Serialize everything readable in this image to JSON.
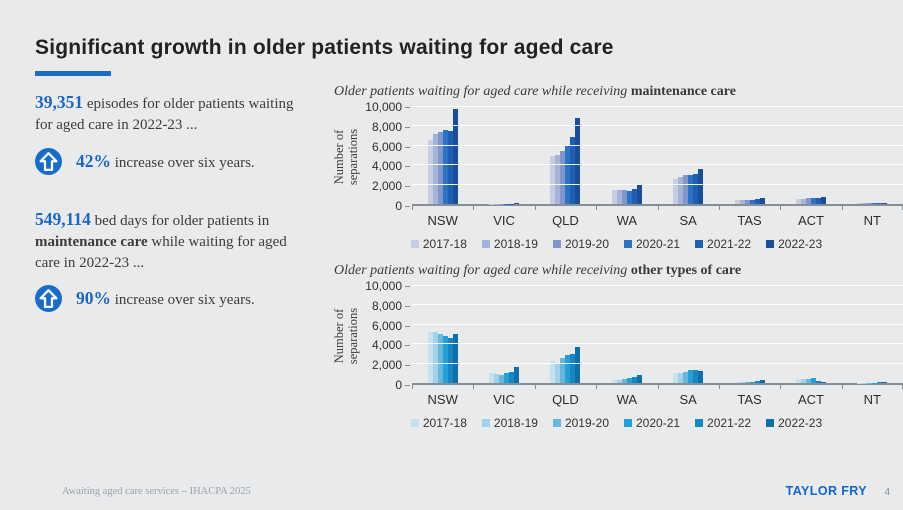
{
  "slide": {
    "title": "Significant growth in older patients waiting for aged care"
  },
  "stats": [
    {
      "number": "39,351",
      "rest": " episodes for older patients waiting for aged care in 2022-23 ...",
      "pct": "42%",
      "pct_rest": " increase over six years."
    },
    {
      "number": "549,114",
      "mid": " bed days for older patients in ",
      "bold": "maintenance care",
      "rest": " while waiting for aged care in 2022-23 ...",
      "pct": "90%",
      "pct_rest": " increase over six years."
    }
  ],
  "footer": {
    "left": "Awaiting aged care services – IHACPA 2025",
    "brand": "TAYLOR FRY",
    "page": "4"
  },
  "colors": {
    "accent": "#1b6cc7",
    "stat_number": "#1b67c3",
    "brand_blue": "#1566c9"
  },
  "chart_data": [
    {
      "type": "bar",
      "title_italic": "Older patients waiting for aged care while receiving ",
      "title_bold": "maintenance care",
      "ylabel_line1": "Number of",
      "ylabel_line2": "separations",
      "ylim": [
        0,
        10000
      ],
      "yticks": [
        "0",
        "2,000",
        "4,000",
        "6,000",
        "8,000",
        "10,000"
      ],
      "grid": true,
      "legend_position": "bottom",
      "categories": [
        "NSW",
        "VIC",
        "QLD",
        "WA",
        "SA",
        "TAS",
        "ACT",
        "NT"
      ],
      "series": [
        {
          "name": "2017-18",
          "color": "#c7cee3",
          "values": [
            6600,
            30,
            5000,
            1400,
            2600,
            400,
            550,
            80
          ]
        },
        {
          "name": "2018-19",
          "color": "#a5b3d8",
          "values": [
            7200,
            30,
            5100,
            1450,
            2800,
            400,
            560,
            80
          ]
        },
        {
          "name": "2019-20",
          "color": "#8097cc",
          "values": [
            7400,
            30,
            5500,
            1400,
            3000,
            420,
            620,
            90
          ]
        },
        {
          "name": "2020-21",
          "color": "#2e72c4",
          "values": [
            7600,
            30,
            6000,
            1300,
            3000,
            450,
            640,
            90
          ]
        },
        {
          "name": "2021-22",
          "color": "#1e5fb3",
          "values": [
            7500,
            40,
            6900,
            1500,
            3100,
            550,
            580,
            110
          ]
        },
        {
          "name": "2022-23",
          "color": "#1a4f97",
          "values": [
            9800,
            100,
            8900,
            2000,
            3600,
            650,
            750,
            130
          ]
        }
      ]
    },
    {
      "type": "bar",
      "title_italic": "Older patients waiting for aged care while receiving ",
      "title_bold": "other types of care",
      "ylabel_line1": "Number of",
      "ylabel_line2": "separations",
      "ylim": [
        0,
        10000
      ],
      "yticks": [
        "0",
        "2,000",
        "4,000",
        "6,000",
        "8,000",
        "10,000"
      ],
      "grid": true,
      "legend_position": "bottom",
      "categories": [
        "NSW",
        "VIC",
        "QLD",
        "WA",
        "SA",
        "TAS",
        "ACT",
        "NT"
      ],
      "series": [
        {
          "name": "2017-18",
          "color": "#c6e1ef",
          "values": [
            5300,
            1000,
            2300,
            300,
            1000,
            100,
            400,
            40
          ]
        },
        {
          "name": "2018-19",
          "color": "#a3d2e8",
          "values": [
            5300,
            950,
            2000,
            320,
            1050,
            150,
            420,
            40
          ]
        },
        {
          "name": "2019-20",
          "color": "#68b7dd",
          "values": [
            5100,
            800,
            2600,
            400,
            1150,
            120,
            450,
            50
          ]
        },
        {
          "name": "2020-21",
          "color": "#259fd6",
          "values": [
            4800,
            1000,
            2900,
            500,
            1300,
            130,
            500,
            50
          ]
        },
        {
          "name": "2021-22",
          "color": "#1786c2",
          "values": [
            4600,
            1150,
            3000,
            650,
            1350,
            220,
            180,
            60
          ]
        },
        {
          "name": "2022-23",
          "color": "#0f6fa8",
          "values": [
            5100,
            1700,
            3700,
            800,
            1250,
            280,
            120,
            80
          ]
        }
      ]
    }
  ]
}
